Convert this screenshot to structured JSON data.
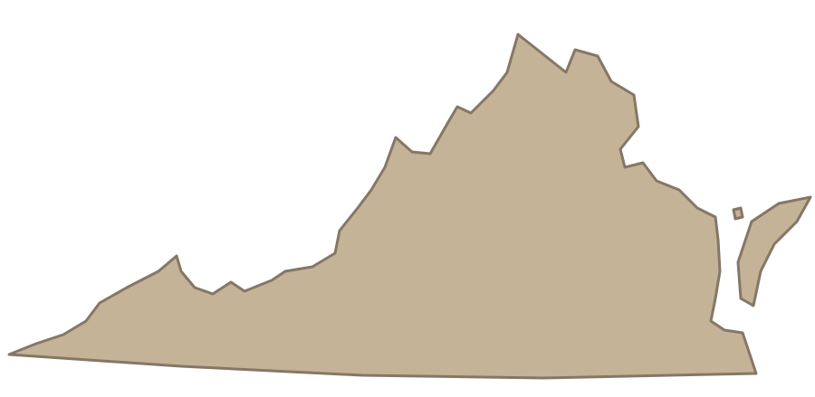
{
  "map": {
    "region": "Virginia",
    "colors": {
      "background": "#ffffff",
      "fill": "#c4b396",
      "stroke": "#857766"
    }
  }
}
